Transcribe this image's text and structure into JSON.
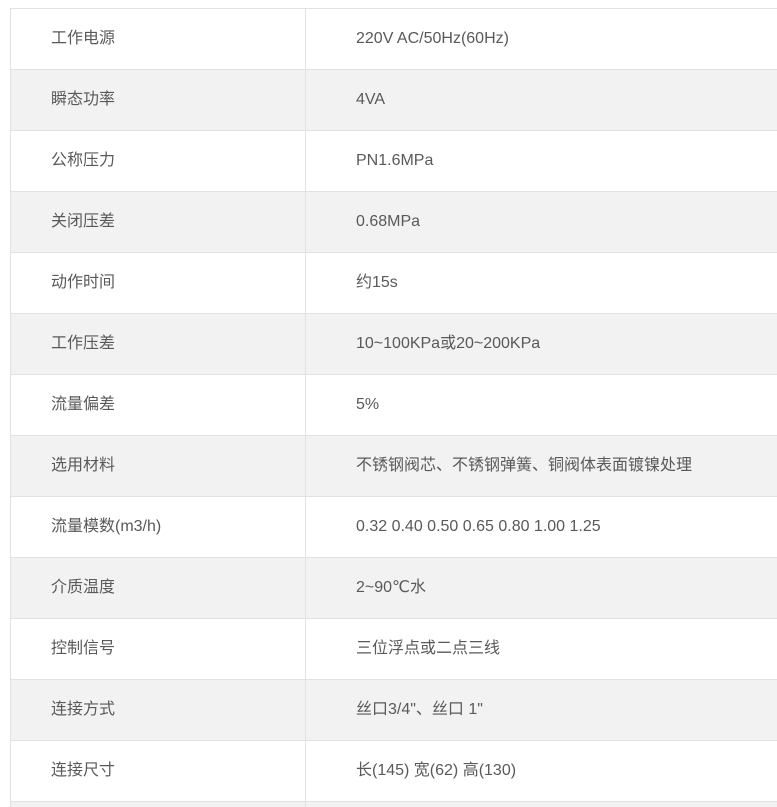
{
  "colors": {
    "row_alt_background": "#f2f2f2",
    "row_background": "#ffffff",
    "border": "#e2e2e2",
    "text": "#595959"
  },
  "table": {
    "rows": [
      {
        "label": "工作电源",
        "value": "220V AC/50Hz(60Hz)"
      },
      {
        "label": "瞬态功率",
        "value": "4VA"
      },
      {
        "label": "公称压力",
        "value": "PN1.6MPa"
      },
      {
        "label": "关闭压差",
        "value": "0.68MPa"
      },
      {
        "label": "动作时间",
        "value": "约15s"
      },
      {
        "label": "工作压差",
        "value": "10~100KPa或20~200KPa"
      },
      {
        "label": "流量偏差",
        "value": "5%"
      },
      {
        "label": "选用材料",
        "value": "不锈钢阀芯、不锈钢弹簧、铜阀体表面镀镍处理"
      },
      {
        "label": "流量模数(m3/h)",
        "value": "0.32 0.40 0.50 0.65 0.80 1.00 1.25"
      },
      {
        "label": "介质温度",
        "value": "2~90℃水"
      },
      {
        "label": "控制信号",
        "value": "三位浮点或二点三线"
      },
      {
        "label": "连接方式",
        "value": "丝口3/4\"、丝口 1\""
      },
      {
        "label": "连接尺寸",
        "value": "长(145) 宽(62) 高(130)"
      }
    ]
  }
}
